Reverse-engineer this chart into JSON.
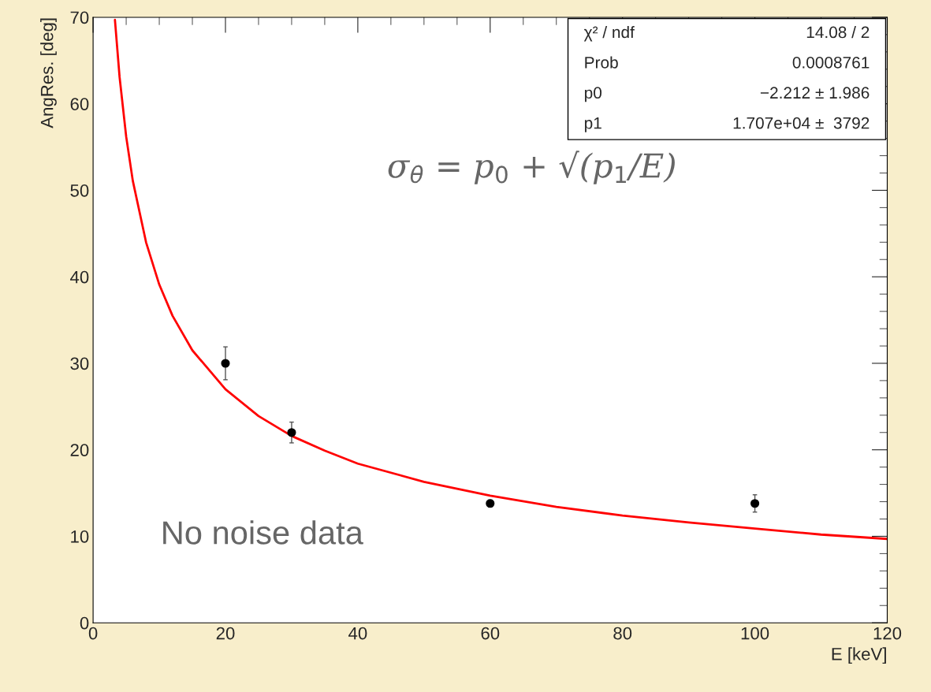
{
  "chart_data": {
    "type": "scatter",
    "xlabel": "E [keV]",
    "ylabel": "AngRes. [deg]",
    "xlim": [
      0,
      120
    ],
    "ylim": [
      0,
      70
    ],
    "xticks": [
      0,
      20,
      40,
      60,
      80,
      100,
      120
    ],
    "yticks": [
      0,
      10,
      20,
      30,
      40,
      50,
      60,
      70
    ],
    "grid": false,
    "series": [
      {
        "marker": "circle",
        "color": "#000000",
        "x": [
          20,
          30,
          60,
          100
        ],
        "values": [
          30,
          22,
          13.8,
          13.8
        ],
        "errors": [
          1.9,
          1.2,
          0.4,
          1.0
        ]
      },
      {
        "type": "line",
        "color": "#ff0000",
        "x": [
          3.3,
          4,
          5,
          6,
          8,
          10,
          12,
          15,
          20,
          25,
          30,
          35,
          40,
          50,
          60,
          70,
          80,
          90,
          100,
          110,
          120
        ],
        "values": [
          69.7,
          63.1,
          56.2,
          51.1,
          44.0,
          39.1,
          35.5,
          31.5,
          27.0,
          23.9,
          21.6,
          19.9,
          18.4,
          16.3,
          14.7,
          13.4,
          12.4,
          11.6,
          10.9,
          10.2,
          9.7
        ]
      }
    ],
    "annotations": [
      "σ$_{θ}$ = p$_{0}$ + √(p$_{1}$/E)",
      "No noise data",
      "χ² / ndf",
      "14.08 / 2",
      "Prob",
      "0.0008761",
      "p0",
      "−2.212 ± 1.986",
      "p1",
      "1.707e+04 ±  3792"
    ]
  }
}
